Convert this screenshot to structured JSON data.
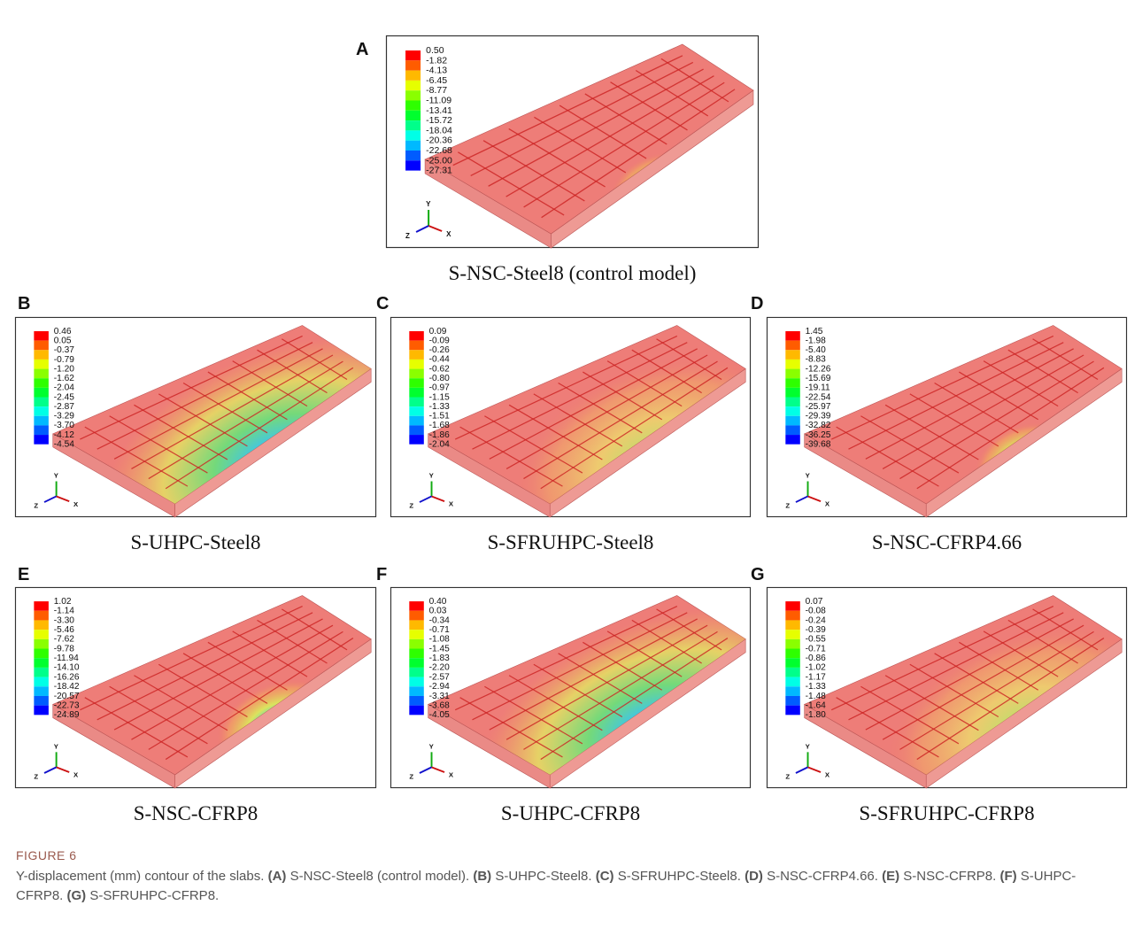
{
  "panels": [
    {
      "letter": "A",
      "legend": [
        "0.50",
        "-1.82",
        "-4.13",
        "-6.45",
        "-8.77",
        "-11.09",
        "-13.41",
        "-15.72",
        "-18.04",
        "-20.36",
        "-22.68",
        "-25.00",
        "-27.31"
      ],
      "axes": {
        "y": "Y",
        "z": "Z",
        "x": "X"
      },
      "caption": "S-NSC-Steel8 (control model)"
    },
    {
      "letter": "B",
      "legend": [
        "0.46",
        "0.05",
        "-0.37",
        "-0.79",
        "-1.20",
        "-1.62",
        "-2.04",
        "-2.45",
        "-2.87",
        "-3.29",
        "-3.70",
        "-4.12",
        "-4.54"
      ],
      "axes": {
        "y": "Y",
        "z": "Z",
        "x": "X"
      },
      "caption": "S-UHPC-Steel8"
    },
    {
      "letter": "C",
      "legend": [
        "0.09",
        "-0.09",
        "-0.26",
        "-0.44",
        "-0.62",
        "-0.80",
        "-0.97",
        "-1.15",
        "-1.33",
        "-1.51",
        "-1.68",
        "-1.86",
        "-2.04"
      ],
      "axes": {
        "y": "Y",
        "z": "Z",
        "x": "X"
      },
      "caption": "S-SFRUHPC-Steel8"
    },
    {
      "letter": "D",
      "legend": [
        "1.45",
        "-1.98",
        "-5.40",
        "-8.83",
        "-12.26",
        "-15.69",
        "-19.11",
        "-22.54",
        "-25.97",
        "-29.39",
        "-32.82",
        "-36.25",
        "-39.68"
      ],
      "axes": {
        "y": "Y",
        "z": "Z",
        "x": "X"
      },
      "caption": "S-NSC-CFRP4.66"
    },
    {
      "letter": "E",
      "legend": [
        "1.02",
        "-1.14",
        "-3.30",
        "-5.46",
        "-7.62",
        "-9.78",
        "-11.94",
        "-14.10",
        "-16.26",
        "-18.42",
        "-20.57",
        "-22.73",
        "-24.89"
      ],
      "axes": {
        "y": "Y",
        "z": "Z",
        "x": "X"
      },
      "caption": "S-NSC-CFRP8"
    },
    {
      "letter": "F",
      "legend": [
        "0.40",
        "0.03",
        "-0.34",
        "-0.71",
        "-1.08",
        "-1.45",
        "-1.83",
        "-2.20",
        "-2.57",
        "-2.94",
        "-3.31",
        "-3.68",
        "-4.05"
      ],
      "axes": {
        "y": "Y",
        "z": "Z",
        "x": "X"
      },
      "caption": "S-UHPC-CFRP8"
    },
    {
      "letter": "G",
      "legend": [
        "0.07",
        "-0.08",
        "-0.24",
        "-0.39",
        "-0.55",
        "-0.71",
        "-0.86",
        "-1.02",
        "-1.17",
        "-1.33",
        "-1.48",
        "-1.64",
        "-1.80"
      ],
      "axes": {
        "y": "Y",
        "z": "Z",
        "x": "X"
      },
      "caption": "S-SFRUHPC-CFRP8"
    }
  ],
  "figure": {
    "label": "FIGURE 6",
    "intro": "Y-displacement (mm) contour of the slabs.",
    "items": [
      {
        "label": "(A)",
        "text": "S-NSC-Steel8 (control model)."
      },
      {
        "label": "(B)",
        "text": "S-UHPC-Steel8."
      },
      {
        "label": "(C)",
        "text": "S-SFRUHPC-Steel8."
      },
      {
        "label": "(D)",
        "text": "S-NSC-CFRP4.66."
      },
      {
        "label": "(E)",
        "text": "S-NSC-CFRP8."
      },
      {
        "label": "(F)",
        "text": "S-UHPC-CFRP8."
      },
      {
        "label": "(G)",
        "text": "S-SFRUHPC-CFRP8."
      }
    ]
  }
}
